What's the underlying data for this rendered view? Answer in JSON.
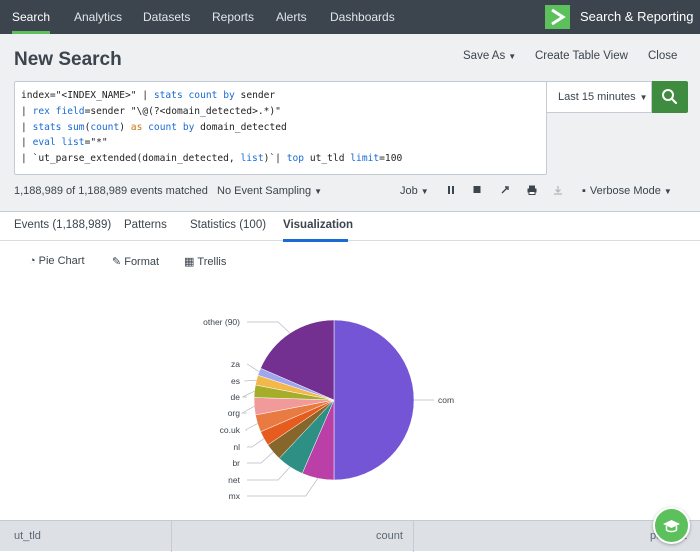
{
  "nav": {
    "items": [
      "Search",
      "Analytics",
      "Datasets",
      "Reports",
      "Alerts",
      "Dashboards"
    ],
    "brand": "Search & Reporting"
  },
  "header": {
    "title": "New Search",
    "save_as": "Save As",
    "create_table_view": "Create Table View",
    "close": "Close"
  },
  "search": {
    "query_lines": [
      "index=\"<INDEX_NAME>\" | stats count by sender",
      "| rex field=sender \"\\@(?<domain_detected>.*)\"",
      "| stats sum(count) as count by domain_detected",
      "| eval list=\"*\"",
      "| `ut_parse_extended(domain_detected, list)`| top ut_tld limit=100"
    ],
    "time_range": "Last 15 minutes"
  },
  "status": {
    "events_matched": "1,188,989 of 1,188,989 events matched",
    "sampling": "No Event Sampling",
    "job": "Job",
    "mode": "Verbose Mode"
  },
  "tabs": [
    "Events (1,188,989)",
    "Patterns",
    "Statistics (100)",
    "Visualization"
  ],
  "viz_toolbar": {
    "chart_type": "Pie Chart",
    "format": "Format",
    "trellis": "Trellis"
  },
  "chart_data": {
    "type": "pie",
    "labels": [
      "com",
      "mx",
      "net",
      "br",
      "nl",
      "co.uk",
      "org",
      "de",
      "es",
      "za",
      "other (90)"
    ],
    "values": [
      50,
      6.5,
      5.5,
      3.5,
      3,
      3.5,
      3.5,
      2.5,
      2,
      1.5,
      18.5
    ],
    "colors": [
      "#7455d6",
      "#ba40a8",
      "#2e8f85",
      "#86662a",
      "#e65c1f",
      "#e87a42",
      "#f09a9a",
      "#a6ad2b",
      "#f2b84a",
      "#a0a5f0",
      "#743090"
    ]
  },
  "table": {
    "columns": [
      "ut_tld",
      "count",
      "percent"
    ]
  }
}
